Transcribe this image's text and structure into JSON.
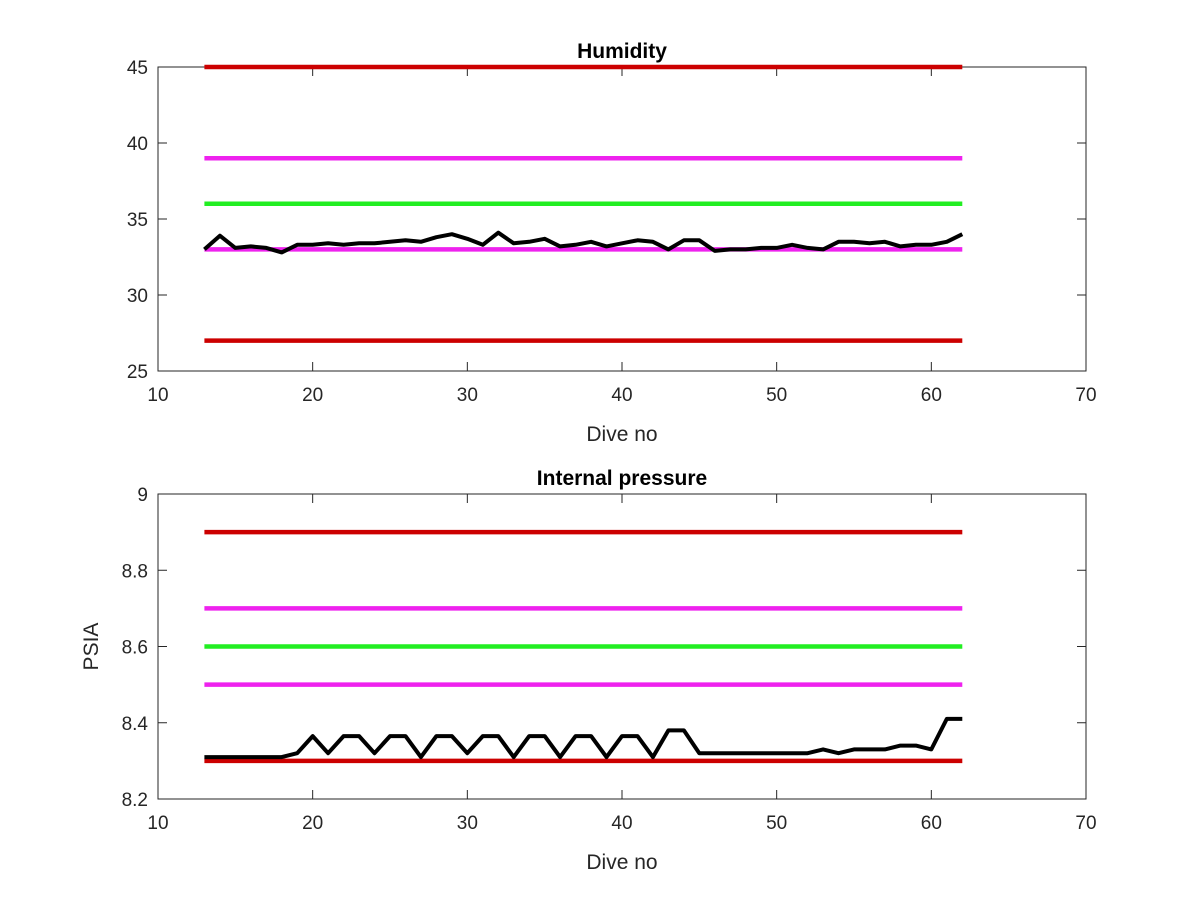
{
  "chart_data": [
    {
      "type": "line",
      "title": "Humidity",
      "xlabel": "Dive no",
      "ylabel": "",
      "xlim": [
        10,
        70
      ],
      "ylim": [
        25,
        45
      ],
      "xticks": [
        "10",
        "20",
        "30",
        "40",
        "50",
        "60",
        "70"
      ],
      "yticks": [
        "25",
        "30",
        "35",
        "40",
        "45"
      ],
      "grid": false,
      "legend": "none",
      "series": [
        {
          "color": "#cc0000",
          "x": [
            13,
            62
          ],
          "y": [
            45,
            45
          ]
        },
        {
          "color": "#ee22ee",
          "x": [
            13,
            62
          ],
          "y": [
            39,
            39
          ]
        },
        {
          "color": "#22ee22",
          "x": [
            13,
            62
          ],
          "y": [
            36,
            36
          ]
        },
        {
          "color": "#ee22ee",
          "x": [
            13,
            62
          ],
          "y": [
            33,
            33
          ]
        },
        {
          "color": "#cc0000",
          "x": [
            13,
            62
          ],
          "y": [
            27,
            27
          ]
        },
        {
          "color": "#000000",
          "x": [
            13,
            14,
            15,
            16,
            17,
            18,
            19,
            20,
            21,
            22,
            23,
            24,
            25,
            26,
            27,
            28,
            29,
            30,
            31,
            32,
            33,
            34,
            35,
            36,
            37,
            38,
            39,
            40,
            41,
            42,
            43,
            44,
            45,
            46,
            47,
            48,
            49,
            50,
            51,
            52,
            53,
            54,
            55,
            56,
            57,
            58,
            59,
            60,
            61,
            62
          ],
          "y": [
            33.0,
            33.9,
            33.1,
            33.2,
            33.1,
            32.8,
            33.3,
            33.3,
            33.4,
            33.3,
            33.4,
            33.4,
            33.5,
            33.6,
            33.5,
            33.8,
            34.0,
            33.7,
            33.3,
            34.1,
            33.4,
            33.5,
            33.7,
            33.2,
            33.3,
            33.5,
            33.2,
            33.4,
            33.6,
            33.5,
            33.0,
            33.6,
            33.6,
            32.9,
            33.0,
            33.0,
            33.1,
            33.1,
            33.3,
            33.1,
            33.0,
            33.5,
            33.5,
            33.4,
            33.5,
            33.2,
            33.3,
            33.3,
            33.5,
            34.0
          ]
        }
      ]
    },
    {
      "type": "line",
      "title": "Internal pressure",
      "xlabel": "Dive no",
      "ylabel": "PSIA",
      "xlim": [
        10,
        70
      ],
      "ylim": [
        8.2,
        9
      ],
      "xticks": [
        "10",
        "20",
        "30",
        "40",
        "50",
        "60",
        "70"
      ],
      "yticks": [
        "8.2",
        "8.4",
        "8.6",
        "8.8",
        "9"
      ],
      "grid": false,
      "legend": "none",
      "series": [
        {
          "color": "#cc0000",
          "x": [
            13,
            62
          ],
          "y": [
            8.9,
            8.9
          ]
        },
        {
          "color": "#ee22ee",
          "x": [
            13,
            62
          ],
          "y": [
            8.7,
            8.7
          ]
        },
        {
          "color": "#22ee22",
          "x": [
            13,
            62
          ],
          "y": [
            8.6,
            8.6
          ]
        },
        {
          "color": "#ee22ee",
          "x": [
            13,
            62
          ],
          "y": [
            8.5,
            8.5
          ]
        },
        {
          "color": "#cc0000",
          "x": [
            13,
            62
          ],
          "y": [
            8.3,
            8.3
          ]
        },
        {
          "color": "#000000",
          "x": [
            13,
            14,
            15,
            16,
            17,
            18,
            19,
            20,
            21,
            22,
            23,
            24,
            25,
            26,
            27,
            28,
            29,
            30,
            31,
            32,
            33,
            34,
            35,
            36,
            37,
            38,
            39,
            40,
            41,
            42,
            43,
            44,
            45,
            46,
            47,
            48,
            49,
            50,
            51,
            52,
            53,
            54,
            55,
            56,
            57,
            58,
            59,
            60,
            61,
            62
          ],
          "y": [
            8.31,
            8.31,
            8.31,
            8.31,
            8.31,
            8.31,
            8.32,
            8.365,
            8.32,
            8.365,
            8.365,
            8.32,
            8.365,
            8.365,
            8.31,
            8.365,
            8.365,
            8.32,
            8.365,
            8.365,
            8.31,
            8.365,
            8.365,
            8.31,
            8.365,
            8.365,
            8.31,
            8.365,
            8.365,
            8.31,
            8.38,
            8.38,
            8.32,
            8.32,
            8.32,
            8.32,
            8.32,
            8.32,
            8.32,
            8.32,
            8.33,
            8.32,
            8.33,
            8.33,
            8.33,
            8.34,
            8.34,
            8.33,
            8.41,
            8.41
          ]
        }
      ]
    }
  ]
}
